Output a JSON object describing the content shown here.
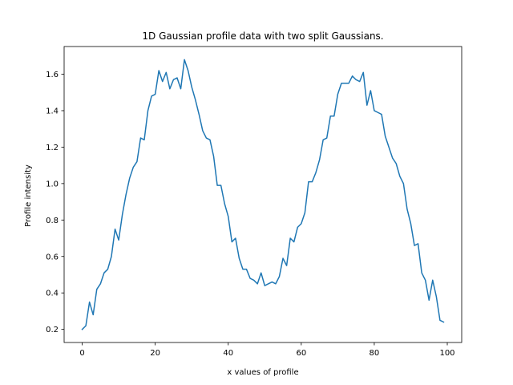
{
  "chart_data": {
    "type": "line",
    "title": "1D Gaussian profile data with two split Gaussians.",
    "xlabel": "x values of profile",
    "ylabel": "Profile intensity",
    "xlim": [
      -4.95,
      103.95
    ],
    "ylim": [
      0.128,
      1.752
    ],
    "xticks": [
      0,
      20,
      40,
      60,
      80,
      100
    ],
    "yticks": [
      0.2,
      0.4,
      0.6,
      0.8,
      1.0,
      1.2,
      1.4,
      1.6
    ],
    "xtick_labels": [
      "0",
      "20",
      "40",
      "60",
      "80",
      "100"
    ],
    "ytick_labels": [
      "0.2",
      "0.4",
      "0.6",
      "0.8",
      "1.0",
      "1.2",
      "1.4",
      "1.6"
    ],
    "grid": false,
    "series": [
      {
        "color": "#1f77b4",
        "x": [
          0,
          1,
          2,
          3,
          4,
          5,
          6,
          7,
          8,
          9,
          10,
          11,
          12,
          13,
          14,
          15,
          16,
          17,
          18,
          19,
          20,
          21,
          22,
          23,
          24,
          25,
          26,
          27,
          28,
          29,
          30,
          31,
          32,
          33,
          34,
          35,
          36,
          37,
          38,
          39,
          40,
          41,
          42,
          43,
          44,
          45,
          46,
          47,
          48,
          49,
          50,
          51,
          52,
          53,
          54,
          55,
          56,
          57,
          58,
          59,
          60,
          61,
          62,
          63,
          64,
          65,
          66,
          67,
          68,
          69,
          70,
          71,
          72,
          73,
          74,
          75,
          76,
          77,
          78,
          79,
          80,
          81,
          82,
          83,
          84,
          85,
          86,
          87,
          88,
          89,
          90,
          91,
          92,
          93,
          94,
          95,
          96,
          97,
          98,
          99
        ],
        "y": [
          0.2,
          0.22,
          0.35,
          0.28,
          0.42,
          0.45,
          0.51,
          0.53,
          0.6,
          0.75,
          0.69,
          0.83,
          0.94,
          1.03,
          1.09,
          1.12,
          1.25,
          1.24,
          1.4,
          1.48,
          1.49,
          1.62,
          1.56,
          1.61,
          1.52,
          1.57,
          1.58,
          1.52,
          1.68,
          1.62,
          1.53,
          1.46,
          1.38,
          1.29,
          1.25,
          1.24,
          1.15,
          0.99,
          0.99,
          0.89,
          0.82,
          0.68,
          0.7,
          0.59,
          0.53,
          0.53,
          0.48,
          0.47,
          0.45,
          0.51,
          0.44,
          0.45,
          0.46,
          0.45,
          0.49,
          0.59,
          0.55,
          0.7,
          0.68,
          0.76,
          0.78,
          0.84,
          1.01,
          1.01,
          1.06,
          1.13,
          1.24,
          1.25,
          1.37,
          1.37,
          1.49,
          1.55,
          1.55,
          1.55,
          1.59,
          1.57,
          1.56,
          1.61,
          1.43,
          1.51,
          1.4,
          1.39,
          1.38,
          1.26,
          1.2,
          1.14,
          1.11,
          1.04,
          1.0,
          0.86,
          0.78,
          0.66,
          0.67,
          0.51,
          0.47,
          0.36,
          0.47,
          0.38,
          0.25,
          0.24
        ]
      }
    ]
  }
}
